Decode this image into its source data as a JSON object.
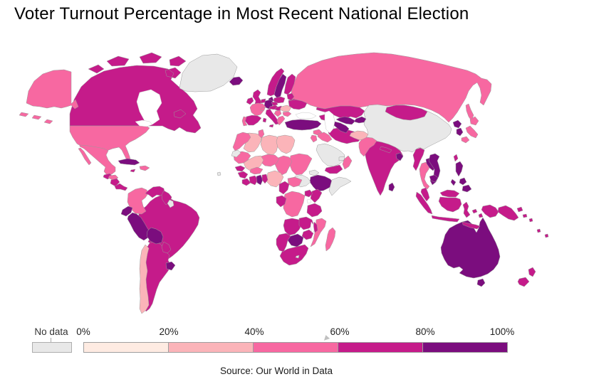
{
  "page": {
    "title": "Voter Turnout Percentage in Most Recent National Election",
    "source": "Source: Our World in Data"
  },
  "legend": {
    "no_data_label": "No data",
    "no_data_color": "#e8e8e8",
    "tick_labels": [
      "0%",
      "20%",
      "40%",
      "60%",
      "80%",
      "100%"
    ],
    "bin_colors": [
      "#feebe2",
      "#fbb4b9",
      "#f768a1",
      "#c51b8a",
      "#7b0d7e"
    ]
  },
  "chart_data": {
    "type": "choropleth",
    "title": "Voter Turnout Percentage in Most Recent National Election",
    "unit": "%",
    "legend_position": "bottom",
    "legend_bins": [
      {
        "label": "0%–20%",
        "color": "#feebe2"
      },
      {
        "label": "20%–40%",
        "color": "#fbb4b9"
      },
      {
        "label": "40%–60%",
        "color": "#f768a1"
      },
      {
        "label": "60%–80%",
        "color": "#c51b8a"
      },
      {
        "label": "80%–100%",
        "color": "#7b0d7e"
      },
      {
        "label": "No data",
        "color": "#e8e8e8"
      }
    ],
    "source": "Source: Our World in Data",
    "countries": [
      {
        "id": "russia",
        "name": "Russia",
        "bin": "40-60"
      },
      {
        "id": "canada",
        "name": "Canada",
        "bin": "60-80"
      },
      {
        "id": "china",
        "name": "China",
        "bin": "no-data"
      },
      {
        "id": "usa",
        "name": "United States",
        "bin": "40-60"
      },
      {
        "id": "brazil",
        "name": "Brazil",
        "bin": "60-80"
      },
      {
        "id": "australia",
        "name": "Australia",
        "bin": "80-100"
      },
      {
        "id": "kazakhstan",
        "name": "Kazakhstan",
        "bin": "60-80"
      },
      {
        "id": "india",
        "name": "India",
        "bin": "60-80"
      },
      {
        "id": "argentina",
        "name": "Argentina",
        "bin": "60-80"
      },
      {
        "id": "greenland",
        "name": "Greenland",
        "bin": "no-data"
      },
      {
        "id": "saudi-arabia",
        "name": "Saudi Arabia",
        "bin": "no-data"
      },
      {
        "id": "mexico",
        "name": "Mexico",
        "bin": "40-60"
      },
      {
        "id": "mongolia",
        "name": "Mongolia",
        "bin": "60-80"
      },
      {
        "id": "iran",
        "name": "Iran",
        "bin": "60-80"
      },
      {
        "id": "algeria",
        "name": "Algeria",
        "bin": "20-40"
      },
      {
        "id": "libya",
        "name": "Libya",
        "bin": "20-40"
      },
      {
        "id": "egypt",
        "name": "Egypt",
        "bin": "20-40"
      },
      {
        "id": "sudan",
        "name": "Sudan",
        "bin": "40-60"
      },
      {
        "id": "chad",
        "name": "Chad",
        "bin": "40-60"
      },
      {
        "id": "niger",
        "name": "Niger",
        "bin": "40-60"
      },
      {
        "id": "mali",
        "name": "Mali",
        "bin": "20-40"
      },
      {
        "id": "mauritania",
        "name": "Mauritania",
        "bin": "40-60"
      },
      {
        "id": "ethiopia",
        "name": "Ethiopia",
        "bin": "80-100"
      },
      {
        "id": "somalia",
        "name": "Somalia",
        "bin": "no-data"
      },
      {
        "id": "south-sudan",
        "name": "South Sudan",
        "bin": "no-data"
      },
      {
        "id": "drc",
        "name": "Democratic Republic of Congo",
        "bin": "40-60"
      },
      {
        "id": "angola",
        "name": "Angola",
        "bin": "60-80"
      },
      {
        "id": "south-africa",
        "name": "South Africa",
        "bin": "60-80"
      },
      {
        "id": "namibia",
        "name": "Namibia",
        "bin": "60-80"
      },
      {
        "id": "botswana",
        "name": "Botswana",
        "bin": "80-100"
      },
      {
        "id": "zambia",
        "name": "Zambia",
        "bin": "60-80"
      },
      {
        "id": "zimbabwe",
        "name": "Zimbabwe",
        "bin": "60-80"
      },
      {
        "id": "mozambique",
        "name": "Mozambique",
        "bin": "40-60"
      },
      {
        "id": "tanzania",
        "name": "Tanzania",
        "bin": "60-80"
      },
      {
        "id": "kenya",
        "name": "Kenya",
        "bin": "60-80"
      },
      {
        "id": "uganda",
        "name": "Uganda",
        "bin": "60-80"
      },
      {
        "id": "car",
        "name": "Central African Republic",
        "bin": "40-60"
      },
      {
        "id": "cameroon",
        "name": "Cameroon",
        "bin": "60-80"
      },
      {
        "id": "nigeria",
        "name": "Nigeria",
        "bin": "20-40"
      },
      {
        "id": "gabon-congo",
        "name": "Gabon & Congo",
        "bin": "60-80"
      },
      {
        "id": "morocco",
        "name": "Morocco",
        "bin": "40-60"
      },
      {
        "id": "western-sahara",
        "name": "Western Sahara",
        "bin": "no-data"
      },
      {
        "id": "tunisia",
        "name": "Tunisia",
        "bin": "40-60"
      },
      {
        "id": "senegal",
        "name": "Senegal",
        "bin": "60-80"
      },
      {
        "id": "guinea",
        "name": "Guinea",
        "bin": "60-80"
      },
      {
        "id": "sierra-leone-liberia",
        "name": "Sierra Leone & Liberia",
        "bin": "60-80"
      },
      {
        "id": "cote-divoire",
        "name": "Côte d'Ivoire",
        "bin": "60-80"
      },
      {
        "id": "ghana",
        "name": "Ghana",
        "bin": "80-100"
      },
      {
        "id": "togo-benin",
        "name": "Togo & Benin",
        "bin": "60-80"
      },
      {
        "id": "burkina-faso",
        "name": "Burkina Faso",
        "bin": "40-60"
      },
      {
        "id": "eritrea",
        "name": "Eritrea",
        "bin": "no-data"
      },
      {
        "id": "madagascar",
        "name": "Madagascar",
        "bin": "40-60"
      },
      {
        "id": "malawi",
        "name": "Malawi",
        "bin": "60-80"
      },
      {
        "id": "lesotho",
        "name": "Lesotho",
        "bin": "no-data"
      },
      {
        "id": "cape-verde",
        "name": "Cape Verde",
        "bin": "no-data"
      },
      {
        "id": "colombia",
        "name": "Colombia",
        "bin": "40-60"
      },
      {
        "id": "venezuela",
        "name": "Venezuela",
        "bin": "60-80"
      },
      {
        "id": "guyana-suriname",
        "name": "Guyana & Suriname",
        "bin": "60-80"
      },
      {
        "id": "french-guiana",
        "name": "French Guiana",
        "bin": "no-data"
      },
      {
        "id": "ecuador",
        "name": "Ecuador",
        "bin": "80-100"
      },
      {
        "id": "peru",
        "name": "Peru",
        "bin": "80-100"
      },
      {
        "id": "bolivia",
        "name": "Bolivia",
        "bin": "80-100"
      },
      {
        "id": "paraguay",
        "name": "Paraguay",
        "bin": "60-80"
      },
      {
        "id": "chile",
        "name": "Chile",
        "bin": "20-40"
      },
      {
        "id": "uruguay",
        "name": "Uruguay",
        "bin": "80-100"
      },
      {
        "id": "cuba",
        "name": "Cuba",
        "bin": "80-100"
      },
      {
        "id": "hispaniola",
        "name": "Haiti & Dominican Republic",
        "bin": "40-60"
      },
      {
        "id": "jamaica",
        "name": "Jamaica",
        "bin": "60-80"
      },
      {
        "id": "guatemala",
        "name": "Guatemala",
        "bin": "60-80"
      },
      {
        "id": "honduras",
        "name": "Honduras",
        "bin": "40-60"
      },
      {
        "id": "nicaragua",
        "name": "Nicaragua",
        "bin": "60-80"
      },
      {
        "id": "costa-rica-panama",
        "name": "Costa Rica & Panama",
        "bin": "60-80"
      },
      {
        "id": "iceland",
        "name": "Iceland",
        "bin": "80-100"
      },
      {
        "id": "uk",
        "name": "United Kingdom",
        "bin": "60-80"
      },
      {
        "id": "ireland",
        "name": "Ireland",
        "bin": "60-80"
      },
      {
        "id": "norway",
        "name": "Norway",
        "bin": "60-80"
      },
      {
        "id": "sweden",
        "name": "Sweden",
        "bin": "80-100"
      },
      {
        "id": "finland",
        "name": "Finland",
        "bin": "60-80"
      },
      {
        "id": "denmark",
        "name": "Denmark",
        "bin": "80-100"
      },
      {
        "id": "germany",
        "name": "Germany",
        "bin": "80-100"
      },
      {
        "id": "netherlands",
        "name": "Netherlands",
        "bin": "60-80"
      },
      {
        "id": "france",
        "name": "France",
        "bin": "40-60"
      },
      {
        "id": "spain",
        "name": "Spain",
        "bin": "60-80"
      },
      {
        "id": "portugal",
        "name": "Portugal",
        "bin": "40-60"
      },
      {
        "id": "italy",
        "name": "Italy",
        "bin": "60-80"
      },
      {
        "id": "switzerland",
        "name": "Switzerland",
        "bin": "40-60"
      },
      {
        "id": "czechia",
        "name": "Czechia",
        "bin": "60-80"
      },
      {
        "id": "austria",
        "name": "Austria",
        "bin": "60-80"
      },
      {
        "id": "poland",
        "name": "Poland",
        "bin": "60-80"
      },
      {
        "id": "hungary",
        "name": "Hungary",
        "bin": "60-80"
      },
      {
        "id": "romania",
        "name": "Romania",
        "bin": "20-40"
      },
      {
        "id": "bulgaria",
        "name": "Bulgaria",
        "bin": "40-60"
      },
      {
        "id": "serbia-balkans",
        "name": "Serbia & Western Balkans",
        "bin": "40-60"
      },
      {
        "id": "greece",
        "name": "Greece",
        "bin": "40-60"
      },
      {
        "id": "baltics",
        "name": "Baltic States",
        "bin": "60-80"
      },
      {
        "id": "belarus",
        "name": "Belarus",
        "bin": "60-80"
      },
      {
        "id": "ukraine",
        "name": "Ukraine",
        "bin": "60-80"
      },
      {
        "id": "turkey",
        "name": "Turkey",
        "bin": "80-100"
      },
      {
        "id": "caucasus",
        "name": "Caucasus States",
        "bin": "60-80"
      },
      {
        "id": "syria",
        "name": "Syria",
        "bin": "40-60"
      },
      {
        "id": "iraq",
        "name": "Iraq",
        "bin": "40-60"
      },
      {
        "id": "israel-jordan",
        "name": "Israel & Jordan",
        "bin": "40-60"
      },
      {
        "id": "yemen",
        "name": "Yemen",
        "bin": "60-80"
      },
      {
        "id": "oman",
        "name": "Oman",
        "bin": "40-60"
      },
      {
        "id": "uae",
        "name": "United Arab Emirates",
        "bin": "no-data"
      },
      {
        "id": "uzbekistan",
        "name": "Uzbekistan",
        "bin": "80-100"
      },
      {
        "id": "turkmenistan",
        "name": "Turkmenistan",
        "bin": "80-100"
      },
      {
        "id": "kyrgyzstan-tajikistan",
        "name": "Kyrgyzstan & Tajikistan",
        "bin": "80-100"
      },
      {
        "id": "afghanistan",
        "name": "Afghanistan",
        "bin": "20-40"
      },
      {
        "id": "pakistan",
        "name": "Pakistan",
        "bin": "40-60"
      },
      {
        "id": "nepal",
        "name": "Nepal",
        "bin": "60-80"
      },
      {
        "id": "bangladesh",
        "name": "Bangladesh",
        "bin": "80-100"
      },
      {
        "id": "sri-lanka",
        "name": "Sri Lanka",
        "bin": "80-100"
      },
      {
        "id": "myanmar",
        "name": "Myanmar",
        "bin": "60-80"
      },
      {
        "id": "thailand",
        "name": "Thailand",
        "bin": "40-60"
      },
      {
        "id": "laos",
        "name": "Laos",
        "bin": "80-100"
      },
      {
        "id": "vietnam",
        "name": "Vietnam",
        "bin": "80-100"
      },
      {
        "id": "cambodia",
        "name": "Cambodia",
        "bin": "80-100"
      },
      {
        "id": "malaysia",
        "name": "Malaysia",
        "bin": "60-80"
      },
      {
        "id": "indonesia",
        "name": "Indonesia",
        "bin": "60-80"
      },
      {
        "id": "philippines",
        "name": "Philippines",
        "bin": "80-100"
      },
      {
        "id": "taiwan",
        "name": "Taiwan",
        "bin": "60-80"
      },
      {
        "id": "japan",
        "name": "Japan",
        "bin": "40-60"
      },
      {
        "id": "north-korea",
        "name": "North Korea",
        "bin": "80-100"
      },
      {
        "id": "south-korea",
        "name": "South Korea",
        "bin": "80-100"
      },
      {
        "id": "png",
        "name": "Papua New Guinea",
        "bin": "60-80"
      },
      {
        "id": "solomon-islands",
        "name": "Solomon Islands",
        "bin": "60-80"
      },
      {
        "id": "fiji-vanuatu",
        "name": "Fiji & Vanuatu",
        "bin": "60-80"
      },
      {
        "id": "new-zealand",
        "name": "New Zealand",
        "bin": "60-80"
      }
    ]
  }
}
